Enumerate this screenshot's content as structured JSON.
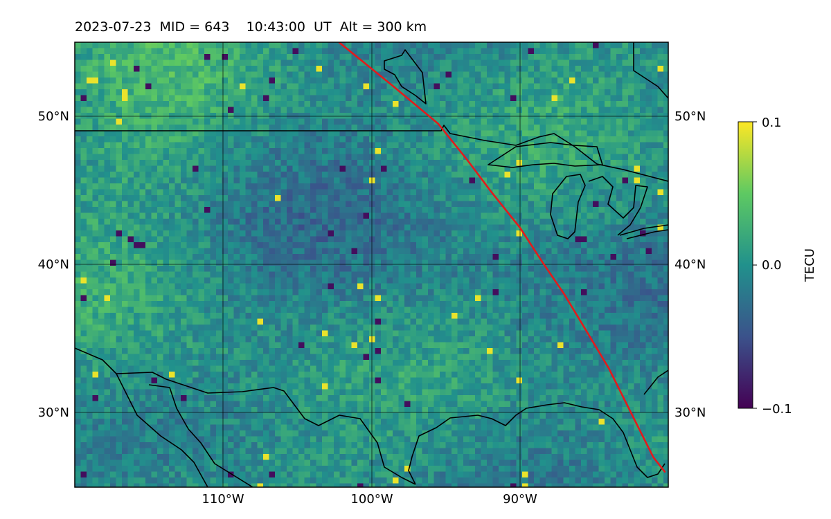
{
  "title": {
    "date": "2023-07-23",
    "mid": "MID = 643",
    "time": "10:43:00",
    "ut": "UT",
    "alt": "Alt = 300 km"
  },
  "map": {
    "lon_range": [
      -120,
      -80
    ],
    "lat_range": [
      25,
      55
    ],
    "lat_ticks": [
      {
        "value": 50,
        "label": "50°N"
      },
      {
        "value": 40,
        "label": "40°N"
      },
      {
        "value": 30,
        "label": "30°N"
      }
    ],
    "lon_ticks": [
      {
        "value": -110,
        "label": "110°W"
      },
      {
        "value": -100,
        "label": "100°W"
      },
      {
        "value": -90,
        "label": "90°W"
      }
    ],
    "gridlines": true,
    "colormap": "viridis",
    "terminator_color": "#e31a1c",
    "terminator_path": [
      [
        -102.2,
        55
      ],
      [
        -98.5,
        52
      ],
      [
        -95.5,
        49.5
      ],
      [
        -93.5,
        47
      ],
      [
        -92,
        45
      ],
      [
        -90,
        42.5
      ],
      [
        -88.5,
        40.2
      ],
      [
        -87,
        38
      ],
      [
        -85.5,
        35.5
      ],
      [
        -84,
        33
      ],
      [
        -82.5,
        30
      ],
      [
        -81,
        27
      ],
      [
        -80.2,
        26
      ]
    ],
    "boundary_color": "#000000"
  },
  "colorbar": {
    "label": "TECU",
    "ticks": [
      {
        "value": 0.1,
        "label": "0.1"
      },
      {
        "value": 0.0,
        "label": "0.0"
      },
      {
        "value": -0.1,
        "label": "−0.1"
      }
    ],
    "stops": [
      "#440154",
      "#3b528b",
      "#21918c",
      "#5ec962",
      "#fde725"
    ]
  }
}
